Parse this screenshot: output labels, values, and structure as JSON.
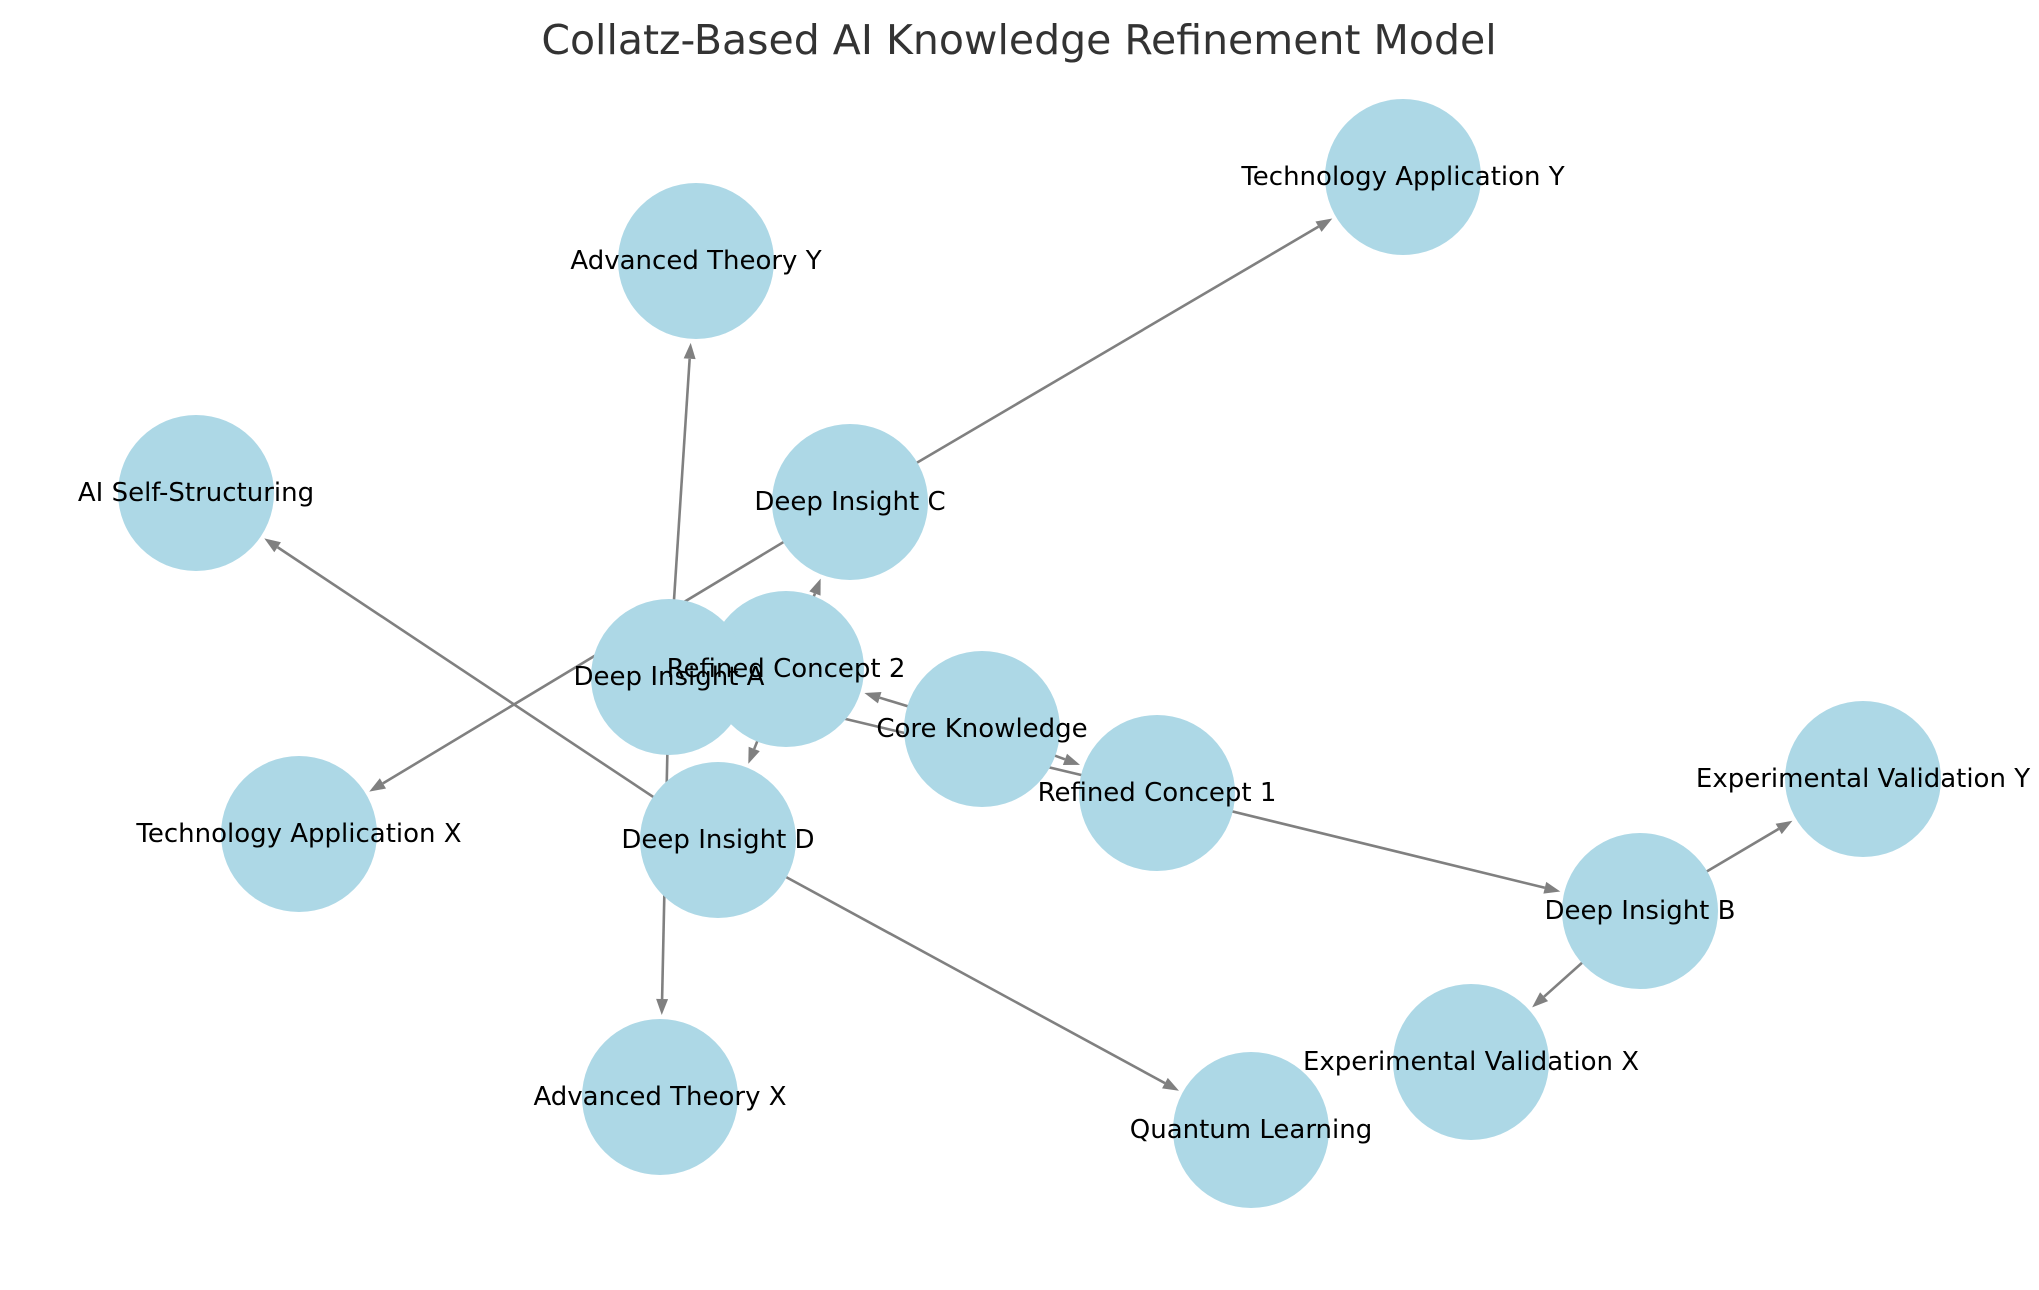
{
  "title": "Collatz-Based AI Knowledge Refinement Model",
  "colors": {
    "node_fill": "#add8e6",
    "edge": "#808080",
    "label": "#000000",
    "title": "#333333",
    "background": "#ffffff"
  },
  "nodes": [
    {
      "id": "core",
      "label": "Core Knowledge"
    },
    {
      "id": "rc1",
      "label": "Refined Concept 1"
    },
    {
      "id": "rc2",
      "label": "Refined Concept 2"
    },
    {
      "id": "dia",
      "label": "Deep Insight A"
    },
    {
      "id": "dib",
      "label": "Deep Insight B"
    },
    {
      "id": "dic",
      "label": "Deep Insight C"
    },
    {
      "id": "did",
      "label": "Deep Insight D"
    },
    {
      "id": "atx",
      "label": "Advanced Theory X"
    },
    {
      "id": "aty",
      "label": "Advanced Theory Y"
    },
    {
      "id": "evx",
      "label": "Experimental Validation X"
    },
    {
      "id": "evy",
      "label": "Experimental Validation Y"
    },
    {
      "id": "tax",
      "label": "Technology Application X"
    },
    {
      "id": "tay",
      "label": "Technology Application Y"
    },
    {
      "id": "ais",
      "label": "AI Self-Structuring"
    },
    {
      "id": "ql",
      "label": "Quantum Learning"
    }
  ],
  "edges": [
    {
      "source": "core",
      "target": "rc1"
    },
    {
      "source": "core",
      "target": "rc2"
    },
    {
      "source": "rc1",
      "target": "dia"
    },
    {
      "source": "rc1",
      "target": "dib"
    },
    {
      "source": "rc2",
      "target": "dic"
    },
    {
      "source": "rc2",
      "target": "did"
    },
    {
      "source": "dia",
      "target": "atx"
    },
    {
      "source": "dia",
      "target": "aty"
    },
    {
      "source": "dib",
      "target": "evx"
    },
    {
      "source": "dib",
      "target": "evy"
    },
    {
      "source": "dic",
      "target": "tax"
    },
    {
      "source": "dic",
      "target": "tay"
    },
    {
      "source": "did",
      "target": "ais"
    },
    {
      "source": "did",
      "target": "ql"
    }
  ]
}
